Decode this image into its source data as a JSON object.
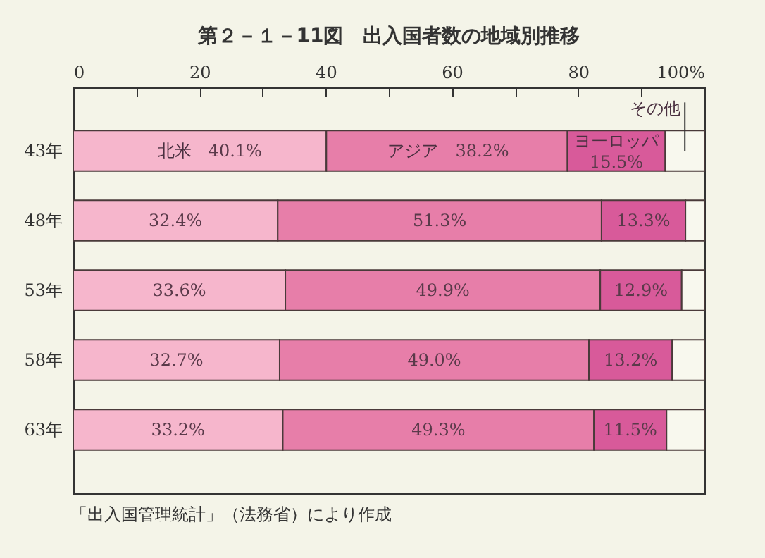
{
  "chart_data": {
    "type": "bar",
    "orientation": "horizontal",
    "stacked": true,
    "title": "第２－１－11図　出入国者数の地域別推移",
    "categories": [
      "43年",
      "48年",
      "53年",
      "58年",
      "63年"
    ],
    "series": [
      {
        "name": "北米",
        "color": "#f6b6cc",
        "values": [
          40.1,
          32.4,
          33.6,
          32.7,
          33.2
        ],
        "value_labels": [
          "40.1%",
          "32.4%",
          "33.6%",
          "32.7%",
          "33.2%"
        ]
      },
      {
        "name": "アジア",
        "color": "#e77ea9",
        "values": [
          38.2,
          51.3,
          49.9,
          49.0,
          49.3
        ],
        "value_labels": [
          "38.2%",
          "51.3%",
          "49.9%",
          "49.0%",
          "49.3%"
        ]
      },
      {
        "name": "ヨーロッパ",
        "color": "#d85a9a",
        "values": [
          15.5,
          13.3,
          12.9,
          13.2,
          11.5
        ],
        "value_labels": [
          "15.5%",
          "13.3%",
          "12.9%",
          "13.2%",
          "11.5%"
        ]
      },
      {
        "name": "その他",
        "color": "#f8f8ee",
        "values": [
          6.2,
          3.0,
          3.6,
          5.1,
          6.0
        ],
        "value_labels": [
          null,
          null,
          null,
          null,
          null
        ]
      }
    ],
    "xlim": [
      0,
      100
    ],
    "xticks": [
      0,
      {
        "value": 10,
        "label": null
      },
      20,
      {
        "value": 30,
        "label": null
      },
      40,
      {
        "value": 50,
        "label": null
      },
      60,
      {
        "value": 70,
        "label": null
      },
      80,
      {
        "value": 90,
        "label": null
      },
      {
        "value": 100,
        "label": "100%"
      }
    ],
    "legend": false,
    "grid": false,
    "annotations": [
      "「出入国管理統計」（法務省）により作成"
    ]
  }
}
